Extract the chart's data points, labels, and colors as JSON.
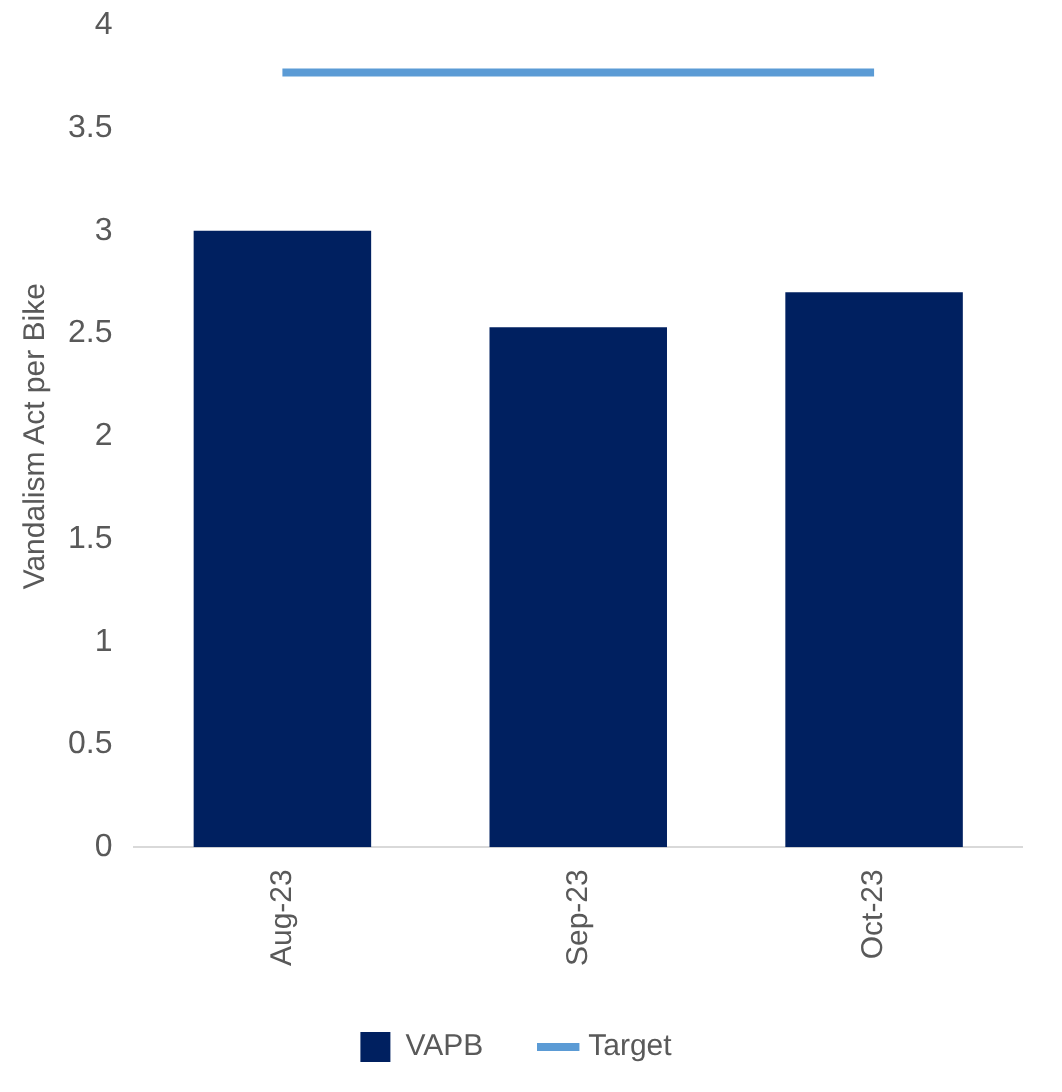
{
  "chart_data": {
    "type": "bar",
    "ylabel": "Vandalism Act per Bike",
    "categories": [
      "Aug-23",
      "Sep-23",
      "Oct-23"
    ],
    "series": [
      {
        "name": "VAPB",
        "color": "#002060",
        "values": [
          3.0,
          2.53,
          2.7
        ]
      },
      {
        "name": "Target",
        "type": "line",
        "color": "#5b9bd5",
        "values": [
          3.77,
          3.77,
          3.77
        ]
      }
    ],
    "ylim": [
      0,
      4
    ],
    "yticks": [
      0,
      0.5,
      1,
      1.5,
      2,
      2.5,
      3,
      3.5,
      4
    ],
    "grid": false,
    "legend": "bottom",
    "marker": "none",
    "line_style": "solid"
  }
}
